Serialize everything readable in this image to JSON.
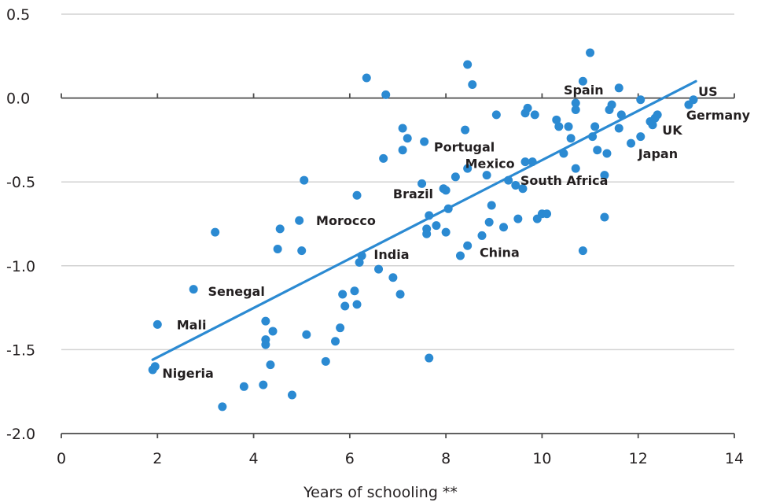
{
  "chart_data": {
    "type": "scatter",
    "title": "",
    "xlabel": "Years of schooling **",
    "ylabel": "",
    "xlim": [
      0,
      14
    ],
    "ylim": [
      -2.0,
      0.5
    ],
    "x_ticks": [
      0,
      2,
      4,
      6,
      8,
      10,
      12,
      14
    ],
    "y_ticks": [
      0.5,
      0.0,
      -0.5,
      -1.0,
      -1.5,
      -2.0
    ],
    "y_tick_labels": [
      "0.5",
      "0.0",
      "-0.5",
      "-1.0",
      "-1.5",
      "-2.0"
    ],
    "grid": "horizontal",
    "point_color": "#2b8ad2",
    "line_color": "#2b8ad2",
    "trend_line": {
      "x": [
        1.9,
        13.2
      ],
      "y": [
        -1.56,
        0.1
      ]
    },
    "points": [
      [
        1.9,
        -1.62
      ],
      [
        1.95,
        -1.6
      ],
      [
        2.0,
        -1.35
      ],
      [
        2.75,
        -1.14
      ],
      [
        3.2,
        -0.8
      ],
      [
        3.35,
        -1.84
      ],
      [
        3.8,
        -1.72
      ],
      [
        4.2,
        -1.71
      ],
      [
        4.25,
        -1.33
      ],
      [
        4.25,
        -1.44
      ],
      [
        4.25,
        -1.47
      ],
      [
        4.35,
        -1.59
      ],
      [
        4.4,
        -1.39
      ],
      [
        4.5,
        -0.9
      ],
      [
        4.55,
        -0.78
      ],
      [
        4.8,
        -1.77
      ],
      [
        4.95,
        -0.73
      ],
      [
        5.0,
        -0.91
      ],
      [
        5.05,
        -0.49
      ],
      [
        5.1,
        -1.41
      ],
      [
        5.5,
        -1.57
      ],
      [
        5.7,
        -1.45
      ],
      [
        5.8,
        -1.37
      ],
      [
        5.85,
        -1.17
      ],
      [
        5.9,
        -1.24
      ],
      [
        6.1,
        -1.15
      ],
      [
        6.15,
        -1.23
      ],
      [
        6.15,
        -0.58
      ],
      [
        6.2,
        -0.98
      ],
      [
        6.25,
        -0.94
      ],
      [
        6.35,
        0.12
      ],
      [
        6.6,
        -1.02
      ],
      [
        6.7,
        -0.36
      ],
      [
        6.75,
        0.02
      ],
      [
        6.9,
        -1.07
      ],
      [
        7.05,
        -1.17
      ],
      [
        7.1,
        -0.31
      ],
      [
        7.1,
        -0.18
      ],
      [
        7.2,
        -0.24
      ],
      [
        7.5,
        -0.51
      ],
      [
        7.55,
        -0.26
      ],
      [
        7.6,
        -0.78
      ],
      [
        7.6,
        -0.81
      ],
      [
        7.65,
        -0.7
      ],
      [
        7.65,
        -1.55
      ],
      [
        7.8,
        -0.76
      ],
      [
        7.95,
        -0.54
      ],
      [
        8.0,
        -0.55
      ],
      [
        8.0,
        -0.8
      ],
      [
        8.05,
        -0.66
      ],
      [
        8.2,
        -0.47
      ],
      [
        8.3,
        -0.94
      ],
      [
        8.4,
        -0.19
      ],
      [
        8.45,
        -0.42
      ],
      [
        8.45,
        0.2
      ],
      [
        8.45,
        -0.88
      ],
      [
        8.55,
        0.08
      ],
      [
        8.75,
        -0.82
      ],
      [
        8.85,
        -0.46
      ],
      [
        8.9,
        -0.74
      ],
      [
        8.95,
        -0.64
      ],
      [
        9.05,
        -0.1
      ],
      [
        9.2,
        -0.77
      ],
      [
        9.3,
        -0.49
      ],
      [
        9.45,
        -0.52
      ],
      [
        9.5,
        -0.72
      ],
      [
        9.6,
        -0.54
      ],
      [
        9.65,
        -0.09
      ],
      [
        9.65,
        -0.38
      ],
      [
        9.7,
        -0.06
      ],
      [
        9.8,
        -0.38
      ],
      [
        9.85,
        -0.1
      ],
      [
        9.9,
        -0.72
      ],
      [
        10.0,
        -0.69
      ],
      [
        10.1,
        -0.69
      ],
      [
        10.3,
        -0.13
      ],
      [
        10.35,
        -0.17
      ],
      [
        10.45,
        -0.33
      ],
      [
        10.55,
        -0.17
      ],
      [
        10.6,
        -0.24
      ],
      [
        10.7,
        -0.42
      ],
      [
        10.7,
        -0.03
      ],
      [
        10.7,
        -0.07
      ],
      [
        10.85,
        -0.91
      ],
      [
        10.85,
        0.1
      ],
      [
        11.0,
        0.27
      ],
      [
        11.05,
        -0.23
      ],
      [
        11.1,
        -0.17
      ],
      [
        11.15,
        -0.31
      ],
      [
        11.3,
        -0.46
      ],
      [
        11.3,
        -0.71
      ],
      [
        11.35,
        -0.33
      ],
      [
        11.4,
        -0.07
      ],
      [
        11.45,
        -0.04
      ],
      [
        11.6,
        0.06
      ],
      [
        11.6,
        -0.18
      ],
      [
        11.65,
        -0.1
      ],
      [
        11.85,
        -0.27
      ],
      [
        12.05,
        -0.01
      ],
      [
        12.05,
        -0.23
      ],
      [
        12.25,
        -0.14
      ],
      [
        12.3,
        -0.16
      ],
      [
        12.35,
        -0.12
      ],
      [
        12.4,
        -0.1
      ],
      [
        13.05,
        -0.04
      ],
      [
        13.15,
        -0.01
      ]
    ],
    "annotations": [
      {
        "text": "Nigeria",
        "x": 2.1,
        "y": -1.64
      },
      {
        "text": "Mali",
        "x": 2.4,
        "y": -1.35
      },
      {
        "text": "Senegal",
        "x": 3.05,
        "y": -1.15
      },
      {
        "text": "Morocco",
        "x": 5.3,
        "y": -0.73
      },
      {
        "text": "India",
        "x": 6.5,
        "y": -0.93
      },
      {
        "text": "Brazil",
        "x": 6.9,
        "y": -0.57
      },
      {
        "text": "Portugal",
        "x": 7.75,
        "y": -0.29
      },
      {
        "text": "Mexico",
        "x": 8.4,
        "y": -0.39
      },
      {
        "text": "China",
        "x": 8.7,
        "y": -0.92
      },
      {
        "text": "South Africa",
        "x": 9.55,
        "y": -0.49
      },
      {
        "text": "Spain",
        "x": 10.45,
        "y": 0.05
      },
      {
        "text": "Japan",
        "x": 12.0,
        "y": -0.33
      },
      {
        "text": "UK",
        "x": 12.5,
        "y": -0.19
      },
      {
        "text": "US",
        "x": 13.25,
        "y": 0.04
      },
      {
        "text": "Germany",
        "x": 13.0,
        "y": -0.1
      }
    ]
  }
}
